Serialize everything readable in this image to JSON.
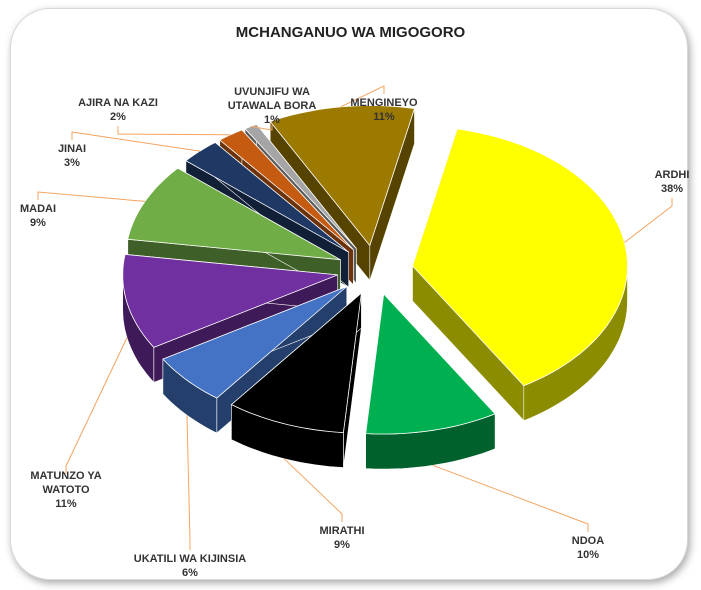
{
  "chart_data": {
    "type": "pie3d",
    "title": "MCHANGANUO WA MIGOGORO",
    "categories": [
      "ARDHI",
      "NDOA",
      "MIRATHI",
      "UKATILI WA KIJINSIA",
      "MATUNZO YA WATOTO",
      "MADAI",
      "JINAI",
      "AJIRA NA KAZI",
      "UVUNJIFU WA UTAWALA BORA",
      "MENGINEYO"
    ],
    "values": [
      38,
      10,
      9,
      6,
      11,
      9,
      3,
      2,
      1,
      11
    ],
    "value_labels": [
      "38%",
      "10%",
      "9%",
      "6%",
      "11%",
      "9%",
      "3%",
      "2%",
      "1%",
      "11%"
    ],
    "colors": [
      "#ffff00",
      "#00b050",
      "#000000",
      "#4472c4",
      "#7030a0",
      "#70ad47",
      "#1f3864",
      "#c55a11",
      "#a5a5a5",
      "#9c7a00"
    ]
  }
}
